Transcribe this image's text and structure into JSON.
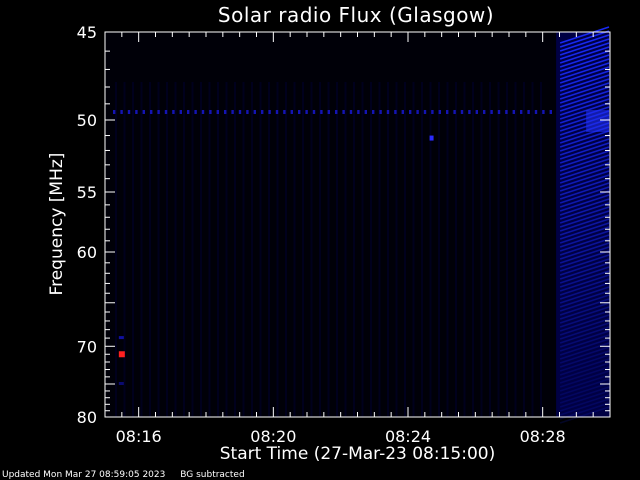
{
  "chart_data": {
    "type": "heatmap",
    "title": "Solar radio Flux (Glasgow)",
    "xlabel": "Start Time (27-Mar-23 08:15:00)",
    "ylabel": "Frequency [MHz]",
    "x_ticks": [
      "08:16",
      "08:20",
      "08:24",
      "08:28"
    ],
    "x_tick_minutes": [
      1,
      5,
      9,
      13
    ],
    "xlim_minutes": [
      0,
      15
    ],
    "y_ticks": [
      45,
      50,
      55,
      60,
      70,
      80
    ],
    "ylim": [
      45,
      80
    ],
    "y_scale": "reciprocal",
    "grid": false,
    "background_color": "#000000",
    "colormap": [
      "#000000",
      "#0000ff",
      "#ff0000"
    ],
    "features": [
      {
        "label": "interference line",
        "freq_mhz": 49.5,
        "intensity": "medium"
      },
      {
        "label": "strong emission band",
        "x_minutes": [
          13.4,
          15
        ],
        "intensity": "medium"
      },
      {
        "label": "red spot",
        "x_minutes": 0.5,
        "freq_mhz": 71,
        "intensity": "high"
      },
      {
        "label": "blue spot",
        "x_minutes": 9.7,
        "freq_mhz": 51.2,
        "intensity": "medium"
      }
    ]
  },
  "footer": {
    "updated": "Updated Mon Mar 27 08:59:05 2023",
    "note": "BG subtracted"
  }
}
